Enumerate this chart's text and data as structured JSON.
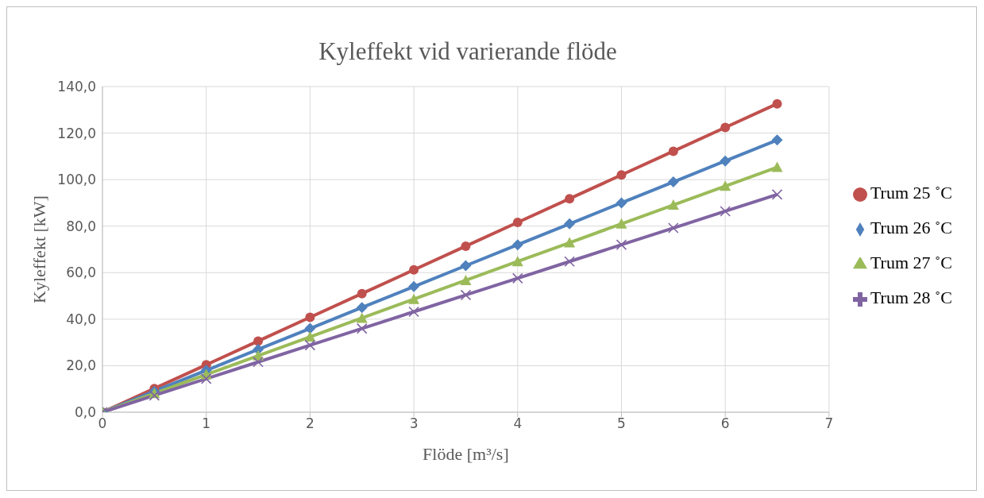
{
  "chart_data": {
    "type": "line",
    "title": "Kyleffekt vid varierande flöde",
    "xlabel": "Flöde [m³/s]",
    "ylabel": "Kyleffekt [kW]",
    "x": [
      0,
      0.5,
      1,
      1.5,
      2,
      2.5,
      3,
      3.5,
      4,
      4.5,
      5,
      5.5,
      6,
      6.5
    ],
    "series": [
      {
        "name": "Trum 25 ˚C",
        "color": "#c0504d",
        "marker": "circle",
        "values": [
          0,
          10.2,
          20.4,
          30.6,
          40.8,
          51,
          61.2,
          71.4,
          81.6,
          91.8,
          102,
          112.2,
          122.4,
          132.6
        ]
      },
      {
        "name": "Trum 26 ˚C",
        "color": "#4f81bd",
        "marker": "diamond",
        "values": [
          0,
          9,
          18,
          27,
          36,
          45,
          54,
          63,
          72,
          81,
          90,
          99,
          108,
          117
        ]
      },
      {
        "name": "Trum 27 ˚C",
        "color": "#9bbb59",
        "marker": "triangle",
        "values": [
          0,
          8.1,
          16.2,
          24.3,
          32.4,
          40.5,
          48.6,
          56.7,
          64.8,
          72.9,
          81,
          89.1,
          97.2,
          105.3
        ]
      },
      {
        "name": "Trum 28 ˚C",
        "color": "#8064a2",
        "marker": "cross",
        "values": [
          0,
          7.2,
          14.4,
          21.6,
          28.8,
          36,
          43.2,
          50.4,
          57.6,
          64.8,
          72,
          79.2,
          86.4,
          93.6
        ]
      }
    ],
    "xlim": [
      0,
      7
    ],
    "xticks": [
      0,
      1,
      2,
      3,
      4,
      5,
      6,
      7
    ],
    "ylim": [
      0,
      140
    ],
    "yticks": [
      {
        "value": 0,
        "label": "0,0"
      },
      {
        "value": 20,
        "label": "20,0"
      },
      {
        "value": 40,
        "label": "40,0"
      },
      {
        "value": 60,
        "label": "60,0"
      },
      {
        "value": 80,
        "label": "80,0"
      },
      {
        "value": 100,
        "label": "100,0"
      },
      {
        "value": 120,
        "label": "120,0"
      },
      {
        "value": 140,
        "label": "140,0"
      }
    ],
    "grid": true,
    "legend": "right",
    "line_style": "solid"
  }
}
